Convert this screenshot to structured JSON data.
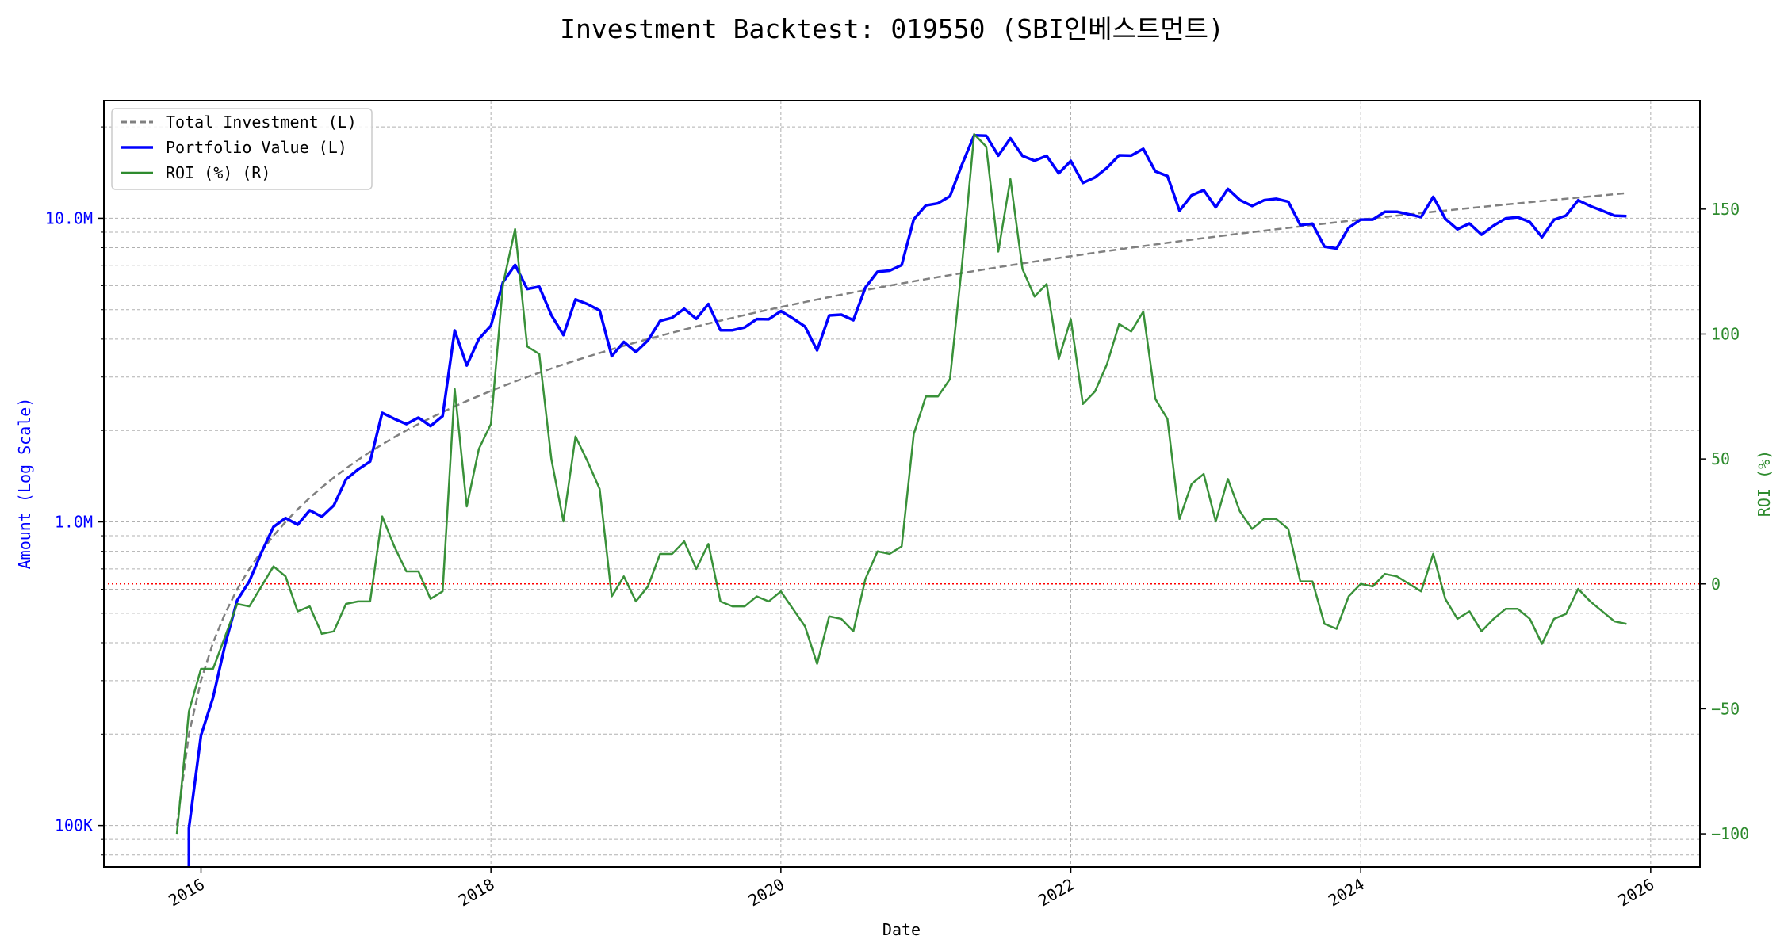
{
  "chart_data": {
    "type": "line",
    "title": "Investment Backtest: 019550 (SBI인베스트먼트)",
    "xlabel": "Date",
    "ylabel_left": "Amount (Log Scale)",
    "ylabel_right": "ROI (%)",
    "x_start": "2015-11",
    "x_frequency": "monthly",
    "xlim": [
      2015.33,
      2026.34
    ],
    "x_ticks": [
      "2016",
      "2018",
      "2020",
      "2022",
      "2024",
      "2026"
    ],
    "y_left_scale": "log",
    "y_left_lim": [
      73000,
      24400000
    ],
    "y_left_ticks": [
      {
        "value": 100000,
        "label": "100K"
      },
      {
        "value": 1000000,
        "label": "1.0M"
      },
      {
        "value": 10000000,
        "label": "10.0M"
      }
    ],
    "y_right_lim": [
      -113.3,
      193.4
    ],
    "y_right_ticks": [
      {
        "value": -100,
        "label": "−100"
      },
      {
        "value": -50,
        "label": "−50"
      },
      {
        "value": 0,
        "label": "0"
      },
      {
        "value": 50,
        "label": "50"
      },
      {
        "value": 100,
        "label": "100"
      },
      {
        "value": 150,
        "label": "150"
      }
    ],
    "grid": true,
    "legend_placement": "top-left",
    "monthly_investment": 100000,
    "series": [
      {
        "name": "Total Investment (L)",
        "axis": "left",
        "style": "dashed",
        "color": "#808080",
        "rule": "cumulative monthly_investment"
      },
      {
        "name": "Portfolio Value (L)",
        "axis": "left",
        "style": "solid",
        "color": "#0000ff",
        "rule": "investment * (1 + ROI/100)"
      },
      {
        "name": "ROI (%) (R)",
        "axis": "right",
        "style": "solid",
        "color": "#2e8b2e",
        "values": [
          -100,
          -51,
          -34,
          -34,
          -21,
          -8,
          -9,
          -1,
          7,
          3,
          -11,
          -9,
          -20,
          -19,
          -8,
          -7,
          -7,
          27,
          15,
          5,
          5,
          -6,
          -3,
          78,
          31,
          54,
          64,
          120,
          142,
          95,
          92,
          50,
          25,
          59,
          49,
          38,
          -5,
          3,
          -7,
          -1,
          12,
          12,
          17,
          6,
          16,
          -7,
          -9,
          -9,
          -5,
          -7,
          -3,
          -10,
          -17,
          -32,
          -13,
          -14,
          -19,
          2,
          13,
          12,
          15,
          60,
          75,
          75,
          82,
          128,
          180,
          175,
          133,
          162,
          126,
          115,
          120,
          90,
          106,
          72,
          77,
          88,
          104,
          101,
          109,
          74,
          66,
          26,
          40,
          44,
          25,
          42,
          29,
          22,
          26,
          26,
          22,
          1,
          1,
          -16,
          -18,
          -5,
          0,
          -1,
          4,
          3,
          0,
          -3,
          12,
          -6,
          -14,
          -11,
          -19,
          -14,
          -10,
          -10,
          -14,
          -24,
          -14,
          -12,
          -2,
          -7,
          -11,
          -15,
          -16
        ]
      }
    ],
    "reference_line": {
      "axis": "right",
      "value": 0,
      "color": "#ff0000",
      "style": "dotted"
    }
  }
}
